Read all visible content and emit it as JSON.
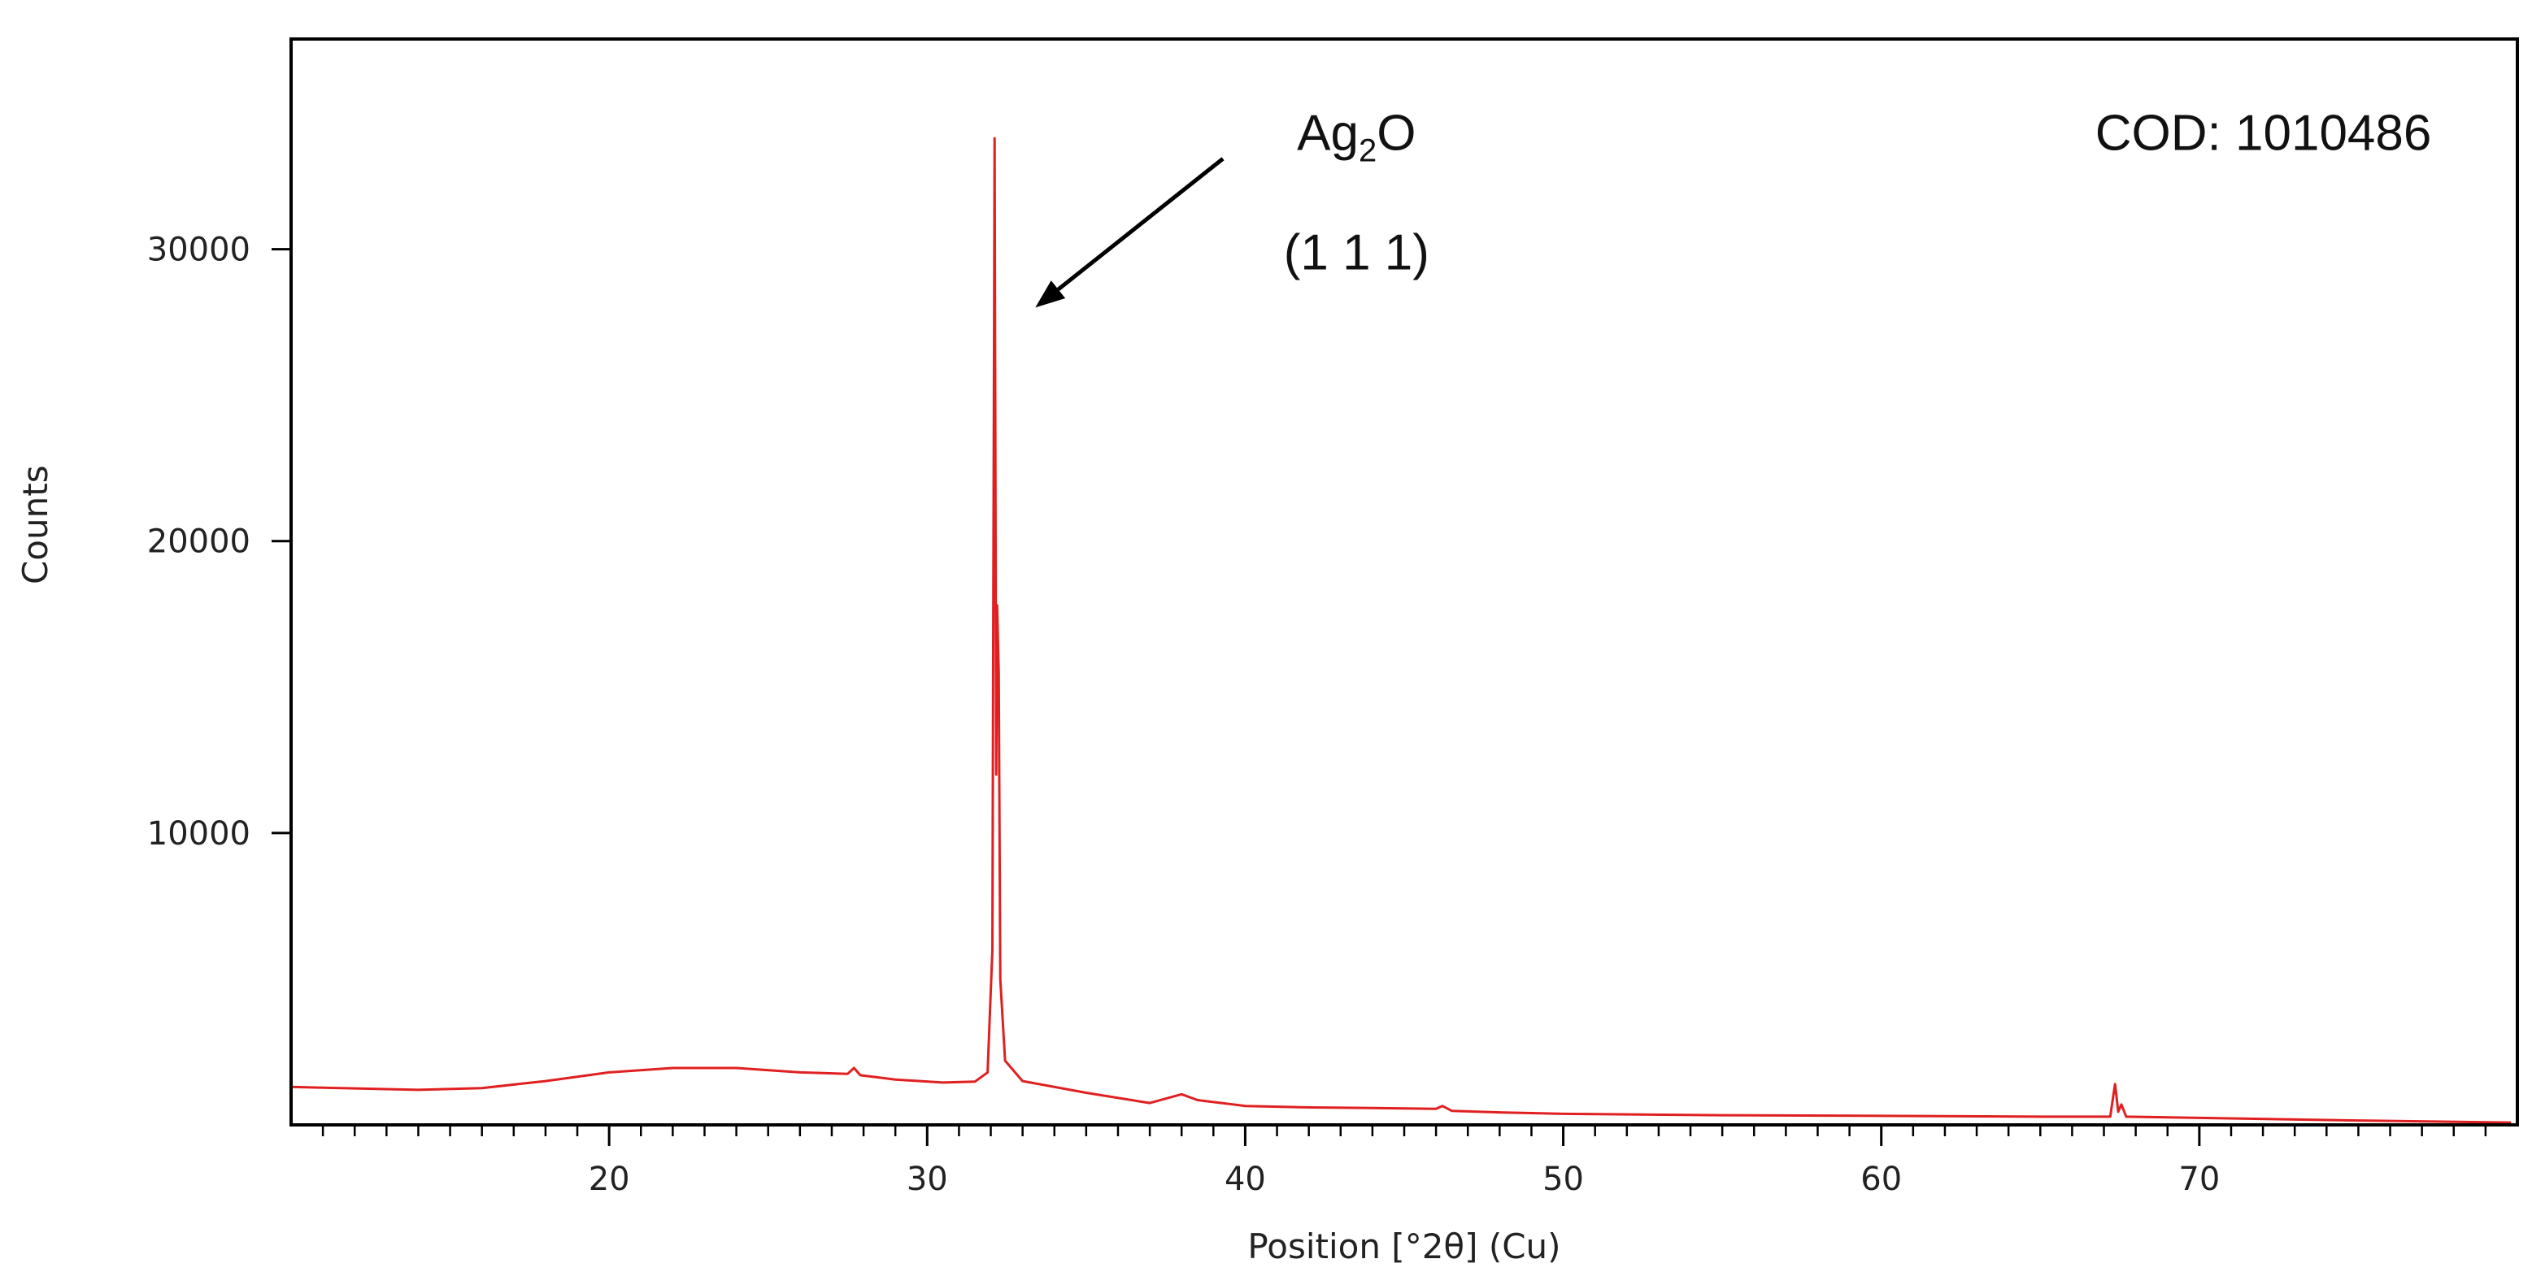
{
  "chart_data": {
    "type": "line",
    "title": "",
    "xlabel": "Position [°2θ] (Cu)",
    "ylabel": "Counts",
    "xlim": [
      10,
      80
    ],
    "ylim": [
      0,
      37200
    ],
    "x_ticks": [
      20,
      30,
      40,
      50,
      60,
      70
    ],
    "y_ticks": [
      10000,
      20000,
      30000
    ],
    "x_minor_tick_step": 1,
    "grid": false,
    "legend": "none",
    "series": [
      {
        "color": "#e02020",
        "points": [
          [
            10.0,
            1300
          ],
          [
            12.0,
            1250
          ],
          [
            14.0,
            1200
          ],
          [
            16.0,
            1260
          ],
          [
            18.0,
            1500
          ],
          [
            20.0,
            1800
          ],
          [
            22.0,
            1950
          ],
          [
            24.0,
            1950
          ],
          [
            26.0,
            1800
          ],
          [
            27.5,
            1750
          ],
          [
            27.7,
            1950
          ],
          [
            27.9,
            1700
          ],
          [
            29.0,
            1550
          ],
          [
            30.5,
            1450
          ],
          [
            31.5,
            1480
          ],
          [
            31.9,
            1800
          ],
          [
            32.05,
            6000
          ],
          [
            32.12,
            33800
          ],
          [
            32.17,
            12000
          ],
          [
            32.2,
            17800
          ],
          [
            32.25,
            15500
          ],
          [
            32.3,
            5000
          ],
          [
            32.45,
            2200
          ],
          [
            33.0,
            1500
          ],
          [
            35.0,
            1100
          ],
          [
            37.0,
            750
          ],
          [
            38.0,
            1050
          ],
          [
            38.5,
            850
          ],
          [
            40.0,
            650
          ],
          [
            42.0,
            600
          ],
          [
            44.0,
            580
          ],
          [
            46.0,
            550
          ],
          [
            46.2,
            650
          ],
          [
            46.5,
            480
          ],
          [
            48.0,
            430
          ],
          [
            50.0,
            380
          ],
          [
            55.0,
            330
          ],
          [
            60.0,
            310
          ],
          [
            65.0,
            280
          ],
          [
            67.2,
            280
          ],
          [
            67.35,
            1400
          ],
          [
            67.45,
            450
          ],
          [
            67.55,
            700
          ],
          [
            67.7,
            280
          ],
          [
            70.0,
            240
          ],
          [
            75.0,
            150
          ],
          [
            79.8,
            80
          ]
        ]
      }
    ],
    "annotations": {
      "formula_main": "Ag",
      "formula_sub": "2",
      "formula_tail": "O",
      "miller_index": "(1 1 1)",
      "reference": "COD: 1010486",
      "arrow_from": [
        39.3,
        33100
      ],
      "arrow_to": [
        33.4,
        28000
      ]
    }
  }
}
